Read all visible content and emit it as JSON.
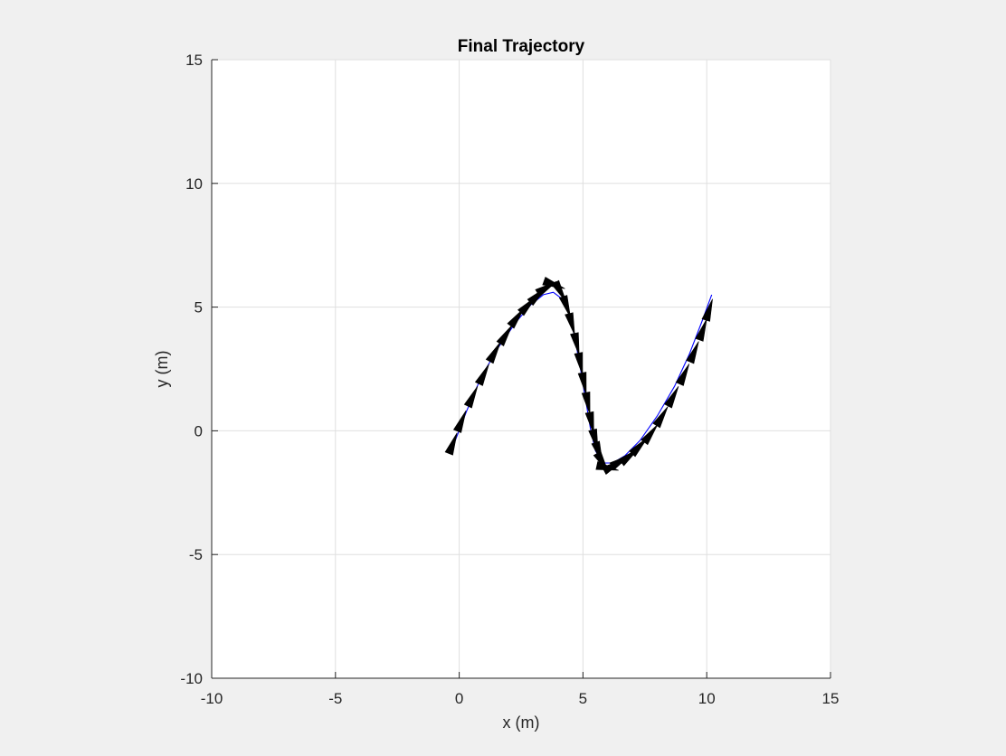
{
  "chart_data": {
    "type": "line",
    "title": "Final Trajectory",
    "xlabel": "x (m)",
    "ylabel": "y (m)",
    "xlim": [
      -10,
      15
    ],
    "ylim": [
      -10,
      15
    ],
    "xticks": [
      -10,
      -5,
      0,
      5,
      10,
      15
    ],
    "yticks": [
      -10,
      -5,
      0,
      5,
      10,
      15
    ],
    "grid": true,
    "colors": {
      "path": "#0000ff",
      "arrows": "#000000",
      "grid": "#dfdfdf",
      "axes": "#262626"
    },
    "series": [
      {
        "x": [
          -0.2,
          0.3,
          0.9,
          1.6,
          2.3,
          2.9,
          3.4,
          3.8,
          4.2,
          4.5,
          4.7,
          4.9,
          5.1,
          5.3,
          5.5,
          5.8,
          6.2,
          6.7,
          7.3,
          8.0,
          8.7,
          9.3,
          9.8,
          10.2
        ],
        "y": [
          -0.5,
          0.8,
          2.2,
          3.4,
          4.4,
          5.1,
          5.5,
          5.6,
          5.3,
          4.6,
          3.6,
          2.5,
          1.3,
          0.1,
          -0.8,
          -1.3,
          -1.3,
          -1.0,
          -0.4,
          0.6,
          1.8,
          3.1,
          4.4,
          5.5
        ]
      }
    ],
    "arrows": {
      "x": [
        -0.25,
        0.1,
        0.55,
        1.0,
        1.45,
        1.9,
        2.35,
        2.8,
        3.2,
        3.55,
        3.85,
        4.1,
        4.35,
        4.55,
        4.75,
        4.9,
        5.05,
        5.2,
        5.35,
        5.5,
        5.65,
        5.8,
        6.0,
        6.25,
        6.55,
        6.9,
        7.3,
        7.75,
        8.2,
        8.65,
        9.1,
        9.5,
        9.85,
        10.1
      ],
      "y": [
        -0.5,
        0.4,
        1.4,
        2.3,
        3.2,
        3.9,
        4.6,
        5.1,
        5.5,
        5.8,
        5.9,
        5.6,
        5.0,
        4.3,
        3.5,
        2.7,
        1.9,
        1.1,
        0.3,
        -0.4,
        -0.9,
        -1.3,
        -1.5,
        -1.4,
        -1.2,
        -1.0,
        -0.6,
        -0.1,
        0.6,
        1.4,
        2.3,
        3.2,
        4.1,
        4.9
      ],
      "scale": 0.6
    }
  }
}
